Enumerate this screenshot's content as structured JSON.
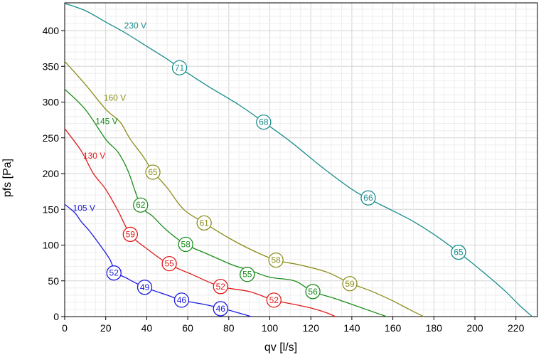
{
  "chart_data": {
    "type": "line",
    "xlabel": "qv [l/s]",
    "ylabel": "pfs [Pa]",
    "xlim": [
      0,
      230
    ],
    "ylim": [
      0,
      440
    ],
    "xticks": [
      0,
      20,
      40,
      60,
      80,
      100,
      120,
      140,
      160,
      180,
      200,
      220
    ],
    "yticks": [
      0,
      50,
      100,
      150,
      200,
      250,
      300,
      350,
      400
    ],
    "grid": true,
    "series": [
      {
        "name": "230 V",
        "color": "#1a8c8c",
        "points": [
          [
            0,
            438
          ],
          [
            10,
            428
          ],
          [
            20,
            412
          ],
          [
            30,
            396
          ],
          [
            40,
            378
          ],
          [
            50,
            360
          ],
          [
            56,
            348
          ],
          [
            70,
            322
          ],
          [
            85,
            296
          ],
          [
            97,
            272
          ],
          [
            110,
            245
          ],
          [
            125,
            210
          ],
          [
            140,
            178
          ],
          [
            148,
            165
          ],
          [
            160,
            148
          ],
          [
            170,
            133
          ],
          [
            180,
            115
          ],
          [
            192,
            90
          ],
          [
            205,
            60
          ],
          [
            215,
            35
          ],
          [
            222,
            15
          ],
          [
            228,
            0
          ]
        ],
        "markers": [
          {
            "x": 56,
            "y": 348,
            "label": "71"
          },
          {
            "x": 97,
            "y": 272,
            "label": "68"
          },
          {
            "x": 148,
            "y": 166,
            "label": "66"
          },
          {
            "x": 192,
            "y": 90,
            "label": "65"
          }
        ]
      },
      {
        "name": "160 V",
        "color": "#8c8c1a",
        "points": [
          [
            0,
            357
          ],
          [
            10,
            325
          ],
          [
            20,
            290
          ],
          [
            27,
            272
          ],
          [
            32,
            248
          ],
          [
            38,
            225
          ],
          [
            43,
            203
          ],
          [
            50,
            180
          ],
          [
            58,
            150
          ],
          [
            68,
            131
          ],
          [
            80,
            110
          ],
          [
            92,
            92
          ],
          [
            103,
            79
          ],
          [
            115,
            72
          ],
          [
            128,
            62
          ],
          [
            139,
            47
          ],
          [
            150,
            35
          ],
          [
            160,
            22
          ],
          [
            168,
            10
          ],
          [
            175,
            0
          ]
        ],
        "markers": [
          {
            "x": 43,
            "y": 202,
            "label": "65"
          },
          {
            "x": 68,
            "y": 131,
            "label": "61"
          },
          {
            "x": 103,
            "y": 79,
            "label": "58"
          },
          {
            "x": 139,
            "y": 46,
            "label": "59"
          }
        ]
      },
      {
        "name": "145 V",
        "color": "#1a8c1a",
        "points": [
          [
            0,
            318
          ],
          [
            10,
            290
          ],
          [
            20,
            248
          ],
          [
            26,
            230
          ],
          [
            31,
            203
          ],
          [
            37,
            156
          ],
          [
            43,
            140
          ],
          [
            50,
            120
          ],
          [
            59,
            101
          ],
          [
            70,
            87
          ],
          [
            82,
            72
          ],
          [
            90,
            65
          ],
          [
            100,
            55
          ],
          [
            112,
            50
          ],
          [
            121,
            35
          ],
          [
            132,
            25
          ],
          [
            142,
            15
          ],
          [
            150,
            7
          ],
          [
            157,
            0
          ]
        ],
        "markers": [
          {
            "x": 37,
            "y": 156,
            "label": "62"
          },
          {
            "x": 59,
            "y": 101,
            "label": "58"
          },
          {
            "x": 89,
            "y": 59,
            "label": "55"
          },
          {
            "x": 121,
            "y": 35,
            "label": "56"
          }
        ]
      },
      {
        "name": "130 V",
        "color": "#e01a1a",
        "points": [
          [
            0,
            263
          ],
          [
            8,
            232
          ],
          [
            14,
            200
          ],
          [
            20,
            178
          ],
          [
            26,
            148
          ],
          [
            32,
            115
          ],
          [
            40,
            95
          ],
          [
            51,
            73
          ],
          [
            62,
            59
          ],
          [
            76,
            42
          ],
          [
            90,
            35
          ],
          [
            102,
            23
          ],
          [
            112,
            17
          ],
          [
            120,
            12
          ],
          [
            128,
            5
          ],
          [
            132,
            0
          ]
        ],
        "markers": [
          {
            "x": 32,
            "y": 115,
            "label": "59"
          },
          {
            "x": 51,
            "y": 74,
            "label": "55"
          },
          {
            "x": 76,
            "y": 42,
            "label": "52"
          },
          {
            "x": 102,
            "y": 23,
            "label": "52"
          }
        ]
      },
      {
        "name": "105 V",
        "color": "#1a1ae0",
        "points": [
          [
            0,
            157
          ],
          [
            5,
            145
          ],
          [
            8,
            133
          ],
          [
            12,
            120
          ],
          [
            18,
            97
          ],
          [
            22,
            80
          ],
          [
            25,
            62
          ],
          [
            30,
            54
          ],
          [
            39,
            41
          ],
          [
            50,
            30
          ],
          [
            57,
            23
          ],
          [
            68,
            17
          ],
          [
            76,
            12
          ],
          [
            85,
            5
          ],
          [
            91,
            0
          ]
        ],
        "markers": [
          {
            "x": 24,
            "y": 61,
            "label": "52"
          },
          {
            "x": 39,
            "y": 41,
            "label": "49"
          },
          {
            "x": 57,
            "y": 23,
            "label": "46"
          },
          {
            "x": 76,
            "y": 11,
            "label": "46"
          }
        ]
      }
    ],
    "series_labels": [
      {
        "text": "230 V",
        "x": 29,
        "y": 403
      },
      {
        "text": "160 V",
        "x": 19,
        "y": 302
      },
      {
        "text": "145 V",
        "x": 15,
        "y": 269
      },
      {
        "text": "130 V",
        "x": 9,
        "y": 221
      },
      {
        "text": "105 V",
        "x": 4,
        "y": 148
      }
    ]
  }
}
